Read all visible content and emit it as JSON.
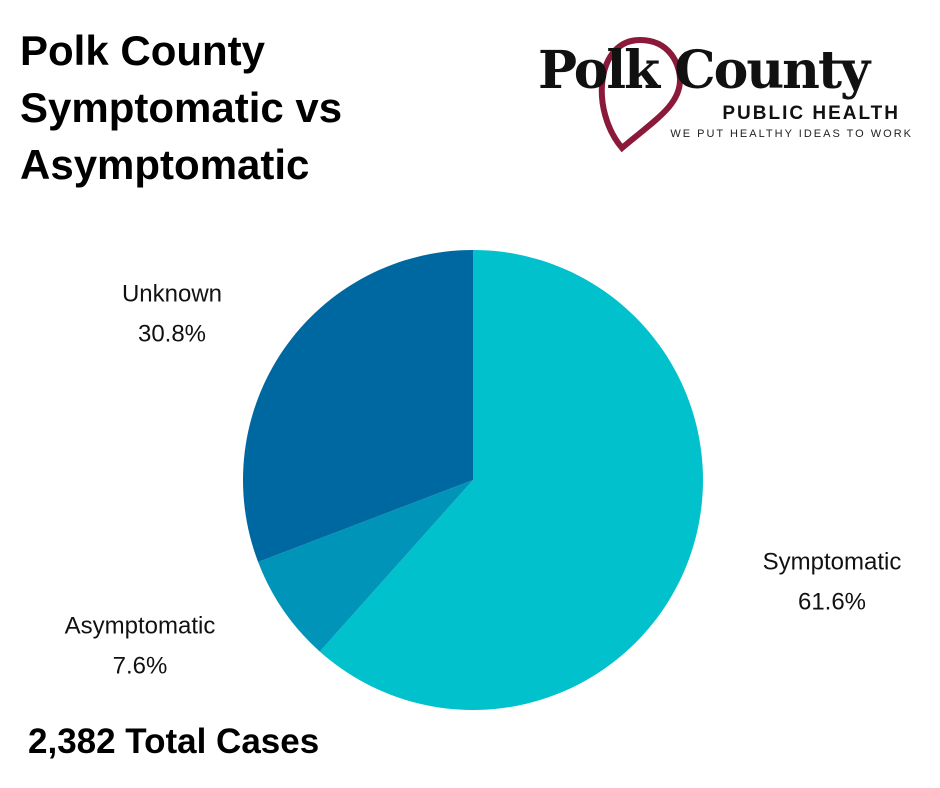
{
  "chart_data": {
    "type": "pie",
    "title": "Polk County Symptomatic vs Asymptomatic",
    "categories": [
      "Symptomatic",
      "Asymptomatic",
      "Unknown"
    ],
    "values": [
      61.6,
      7.6,
      30.8
    ],
    "value_labels": [
      "61.6%",
      "7.6%",
      "30.8%"
    ],
    "colors": [
      "#00c1cc",
      "#0095b8",
      "#0068a0"
    ]
  },
  "footer": "2,382 Total Cases",
  "logo": {
    "name": "Polk County",
    "subtitle": "PUBLIC HEALTH",
    "tagline": "WE PUT HEALTHY IDEAS TO WORK"
  }
}
